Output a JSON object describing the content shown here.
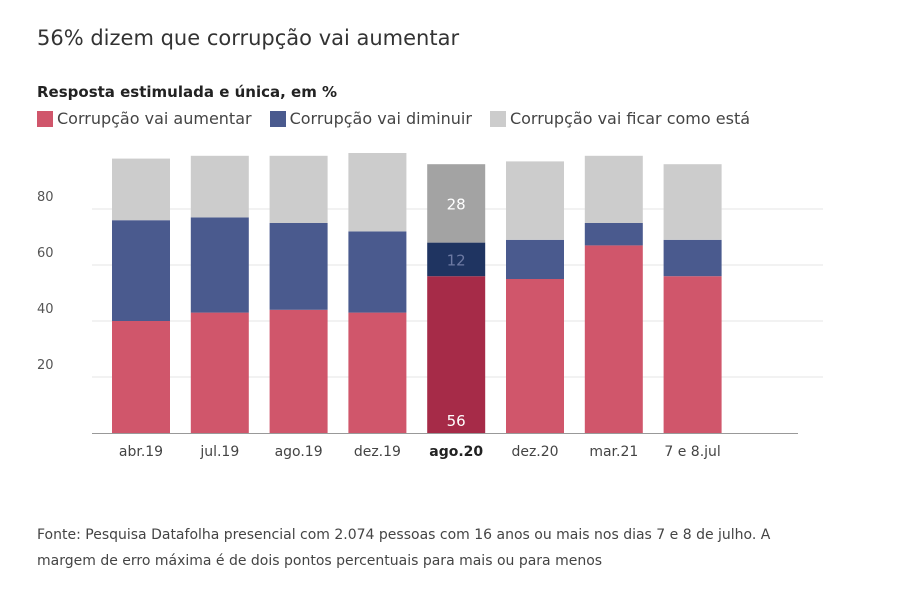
{
  "title": "56% dizem que corrupção vai aumentar",
  "subtitle": "Resposta estimulada e única, em %",
  "legend": [
    {
      "label": "Corrupção vai aumentar",
      "color": "#d0566b"
    },
    {
      "label": "Corrupção vai diminuir",
      "color": "#4a5a8e"
    },
    {
      "label": "Corrupção vai ficar como está",
      "color": "#cccccc"
    }
  ],
  "source": "Fonte: Pesquisa Datafolha presencial com 2.074 pessoas com 16 anos ou mais nos dias 7 e 8 de julho. A margem de erro máxima é de dois pontos percentuais para mais ou para menos",
  "chart_data": {
    "type": "bar",
    "stacked": true,
    "categories": [
      "abr.19",
      "jul.19",
      "ago.19",
      "dez.19",
      "ago.20",
      "dez.20",
      "mar.21",
      "7 e 8.jul"
    ],
    "series": [
      {
        "name": "Corrupção vai aumentar",
        "values": [
          40,
          43,
          44,
          43,
          56,
          55,
          67,
          56
        ],
        "color": "#d0566b"
      },
      {
        "name": "Corrupção vai diminuir",
        "values": [
          36,
          34,
          31,
          29,
          12,
          14,
          8,
          13
        ],
        "color": "#4a5a8e"
      },
      {
        "name": "Corrupção vai ficar como está",
        "values": [
          22,
          22,
          24,
          28,
          28,
          28,
          24,
          27
        ],
        "color": "#cccccc"
      }
    ],
    "highlight": {
      "category": "ago.20",
      "colors": [
        "#a62b48",
        "#1f3461",
        "#a3a3a3"
      ],
      "labels": [
        "56",
        "12",
        "28"
      ]
    },
    "yticks": [
      20,
      40,
      60,
      80
    ],
    "ylim": [
      0,
      100
    ],
    "grid": true,
    "legend_position": "top-left"
  }
}
